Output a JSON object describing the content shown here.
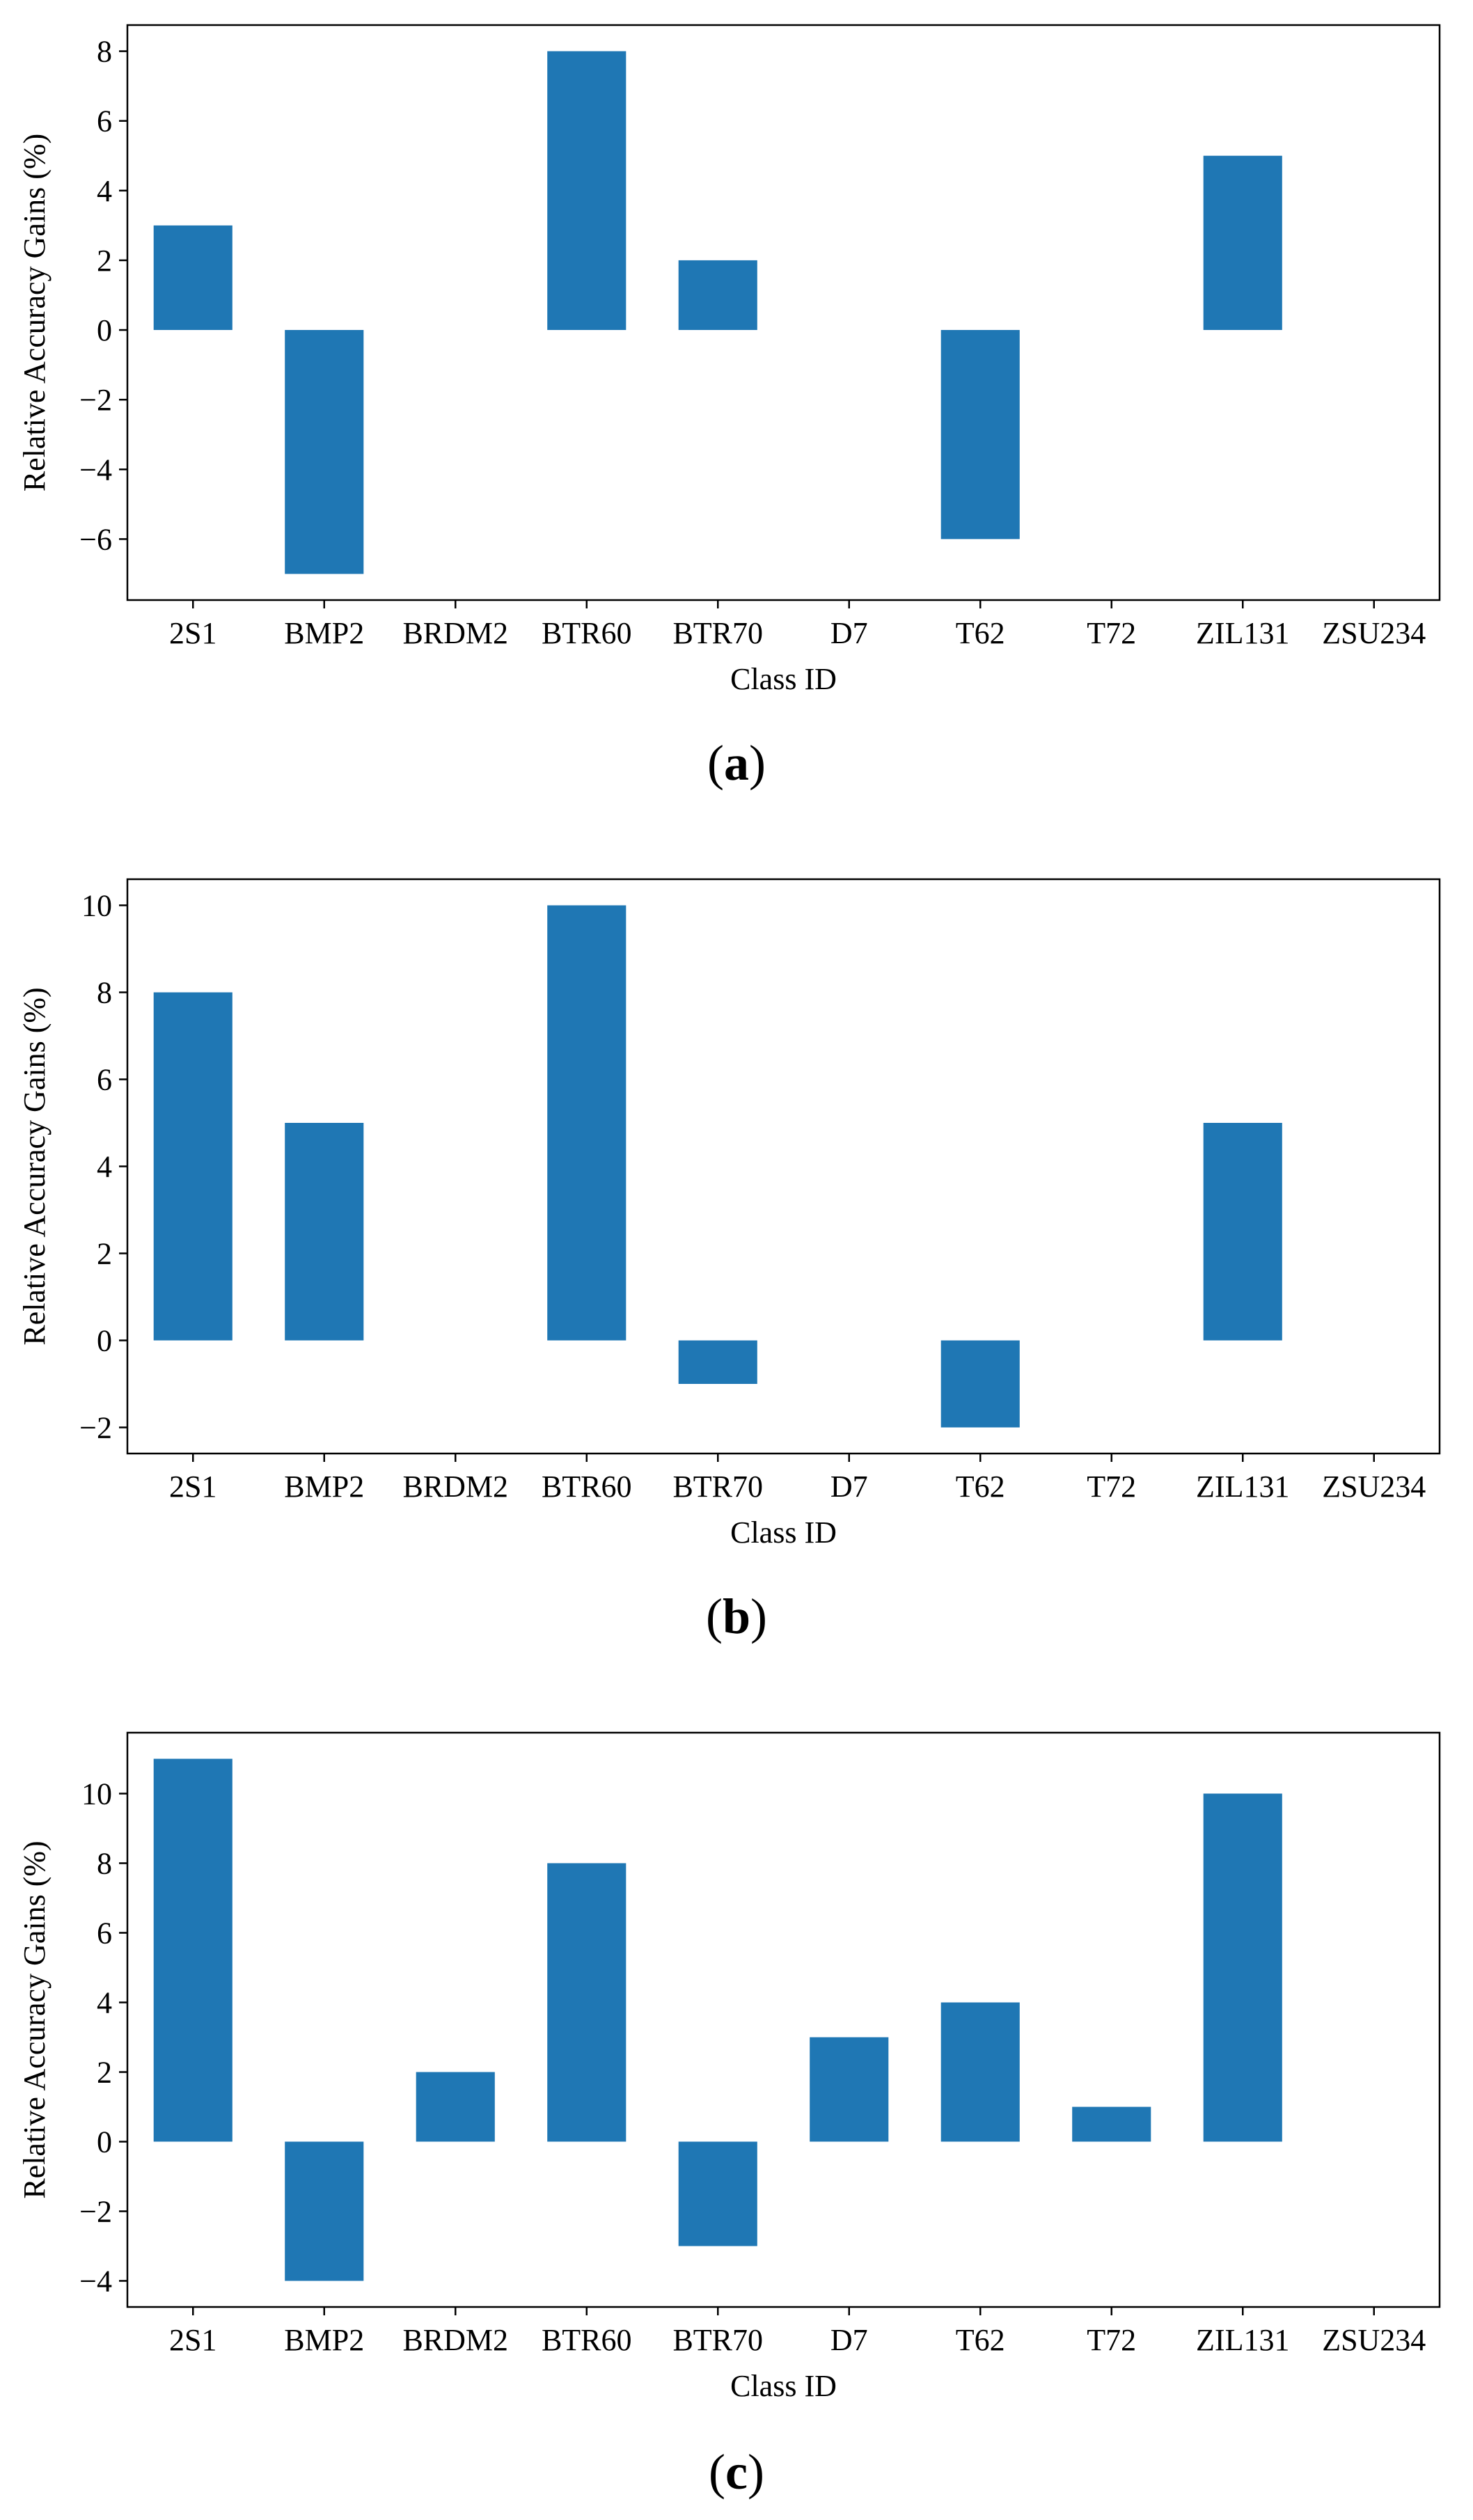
{
  "chart_data": [
    {
      "type": "bar",
      "panel_label": "a",
      "categories": [
        "2S1",
        "BMP2",
        "BRDM2",
        "BTR60",
        "BTR70",
        "D7",
        "T62",
        "T72",
        "ZIL131",
        "ZSU234"
      ],
      "values": [
        3,
        -7,
        0,
        8,
        2,
        0,
        -6,
        0,
        5,
        0
      ],
      "color": "#1f77b4",
      "xlabel": "Class ID",
      "ylabel": "Relative Accuracy Gains (%)",
      "ylim": [
        -7.75,
        8.75
      ],
      "yticks": [
        -6,
        -4,
        -2,
        0,
        2,
        4,
        6,
        8
      ],
      "ytick_labels": [
        "−6",
        "−4",
        "−2",
        "0",
        "2",
        "4",
        "6",
        "8"
      ]
    },
    {
      "type": "bar",
      "panel_label": "b",
      "categories": [
        "2S1",
        "BMP2",
        "BRDM2",
        "BTR60",
        "BTR70",
        "D7",
        "T62",
        "T72",
        "ZIL131",
        "ZSU234"
      ],
      "values": [
        8,
        5,
        0,
        10,
        -1,
        0,
        -2,
        0,
        5,
        0
      ],
      "color": "#1f77b4",
      "xlabel": "Class ID",
      "ylabel": "Relative Accuracy Gains (%)",
      "ylim": [
        -2.6,
        10.6
      ],
      "yticks": [
        -2,
        0,
        2,
        4,
        6,
        8,
        10
      ],
      "ytick_labels": [
        "−2",
        "0",
        "2",
        "4",
        "6",
        "8",
        "10"
      ]
    },
    {
      "type": "bar",
      "panel_label": "c",
      "categories": [
        "2S1",
        "BMP2",
        "BRDM2",
        "BTR60",
        "BTR70",
        "D7",
        "T62",
        "T72",
        "ZIL131",
        "ZSU234"
      ],
      "values": [
        11,
        -4,
        2,
        8,
        -3,
        3,
        4,
        1,
        10,
        0
      ],
      "color": "#1f77b4",
      "xlabel": "Class ID",
      "ylabel": "Relative Accuracy Gains (%)",
      "ylim": [
        -4.75,
        11.75
      ],
      "yticks": [
        -4,
        -2,
        0,
        2,
        4,
        6,
        8,
        10
      ],
      "ytick_labels": [
        "−4",
        "−2",
        "0",
        "2",
        "4",
        "6",
        "8",
        "10"
      ]
    }
  ]
}
